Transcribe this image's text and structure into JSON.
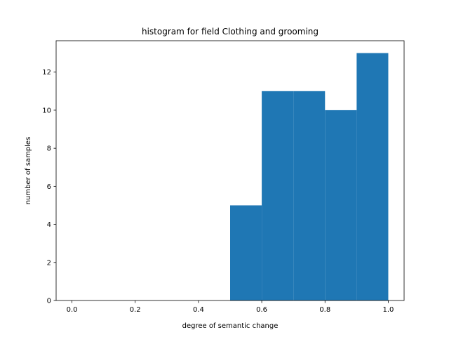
{
  "chart_data": {
    "type": "bar",
    "title": "histogram for field Clothing and grooming",
    "xlabel": "degree of semantic change",
    "ylabel": "number of samples",
    "bins": [
      {
        "start": 0.5,
        "end": 0.6,
        "count": 5
      },
      {
        "start": 0.6,
        "end": 0.7,
        "count": 11
      },
      {
        "start": 0.7,
        "end": 0.8,
        "count": 11
      },
      {
        "start": 0.8,
        "end": 0.9,
        "count": 10
      },
      {
        "start": 0.9,
        "end": 1.0,
        "count": 13
      }
    ],
    "xlim": [
      -0.05,
      1.05
    ],
    "ylim": [
      0,
      13.65
    ],
    "xticks": [
      0.0,
      0.2,
      0.4,
      0.6,
      0.8,
      1.0
    ],
    "xtick_labels": [
      "0.0",
      "0.2",
      "0.4",
      "0.6",
      "0.8",
      "1.0"
    ],
    "yticks": [
      0,
      2,
      4,
      6,
      8,
      10,
      12
    ],
    "ytick_labels": [
      "0",
      "2",
      "4",
      "6",
      "8",
      "10",
      "12"
    ],
    "bar_color": "#1f77b4",
    "grid": false,
    "legend": "none"
  }
}
